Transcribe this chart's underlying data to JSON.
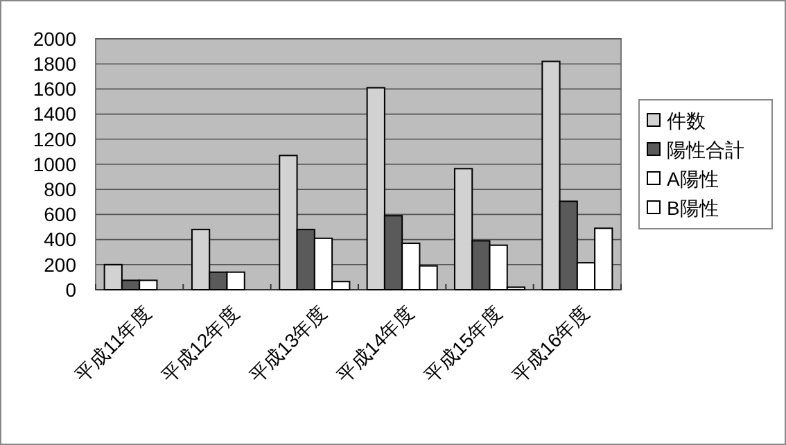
{
  "chart_data": {
    "type": "bar",
    "categories": [
      "平成11年度",
      "平成12年度",
      "平成13年度",
      "平成14年度",
      "平成15年度",
      "平成16年度"
    ],
    "series": [
      {
        "name": "件数",
        "color": "#d2d2d2",
        "values": [
          200,
          480,
          1070,
          1610,
          965,
          1820
        ]
      },
      {
        "name": "陽性合計",
        "color": "#5a5a5a",
        "values": [
          75,
          140,
          480,
          590,
          390,
          705
        ]
      },
      {
        "name": "A陽性",
        "color": "#ffffff",
        "values": [
          75,
          140,
          410,
          370,
          355,
          215
        ]
      },
      {
        "name": "B陽性",
        "color": "#ffffff",
        "values": [
          0,
          0,
          65,
          190,
          20,
          490
        ]
      }
    ],
    "ylim": [
      0,
      2000
    ],
    "yticks": [
      0,
      200,
      400,
      600,
      800,
      1000,
      1200,
      1400,
      1600,
      1800,
      2000
    ],
    "grid": "y",
    "legend": "right"
  }
}
